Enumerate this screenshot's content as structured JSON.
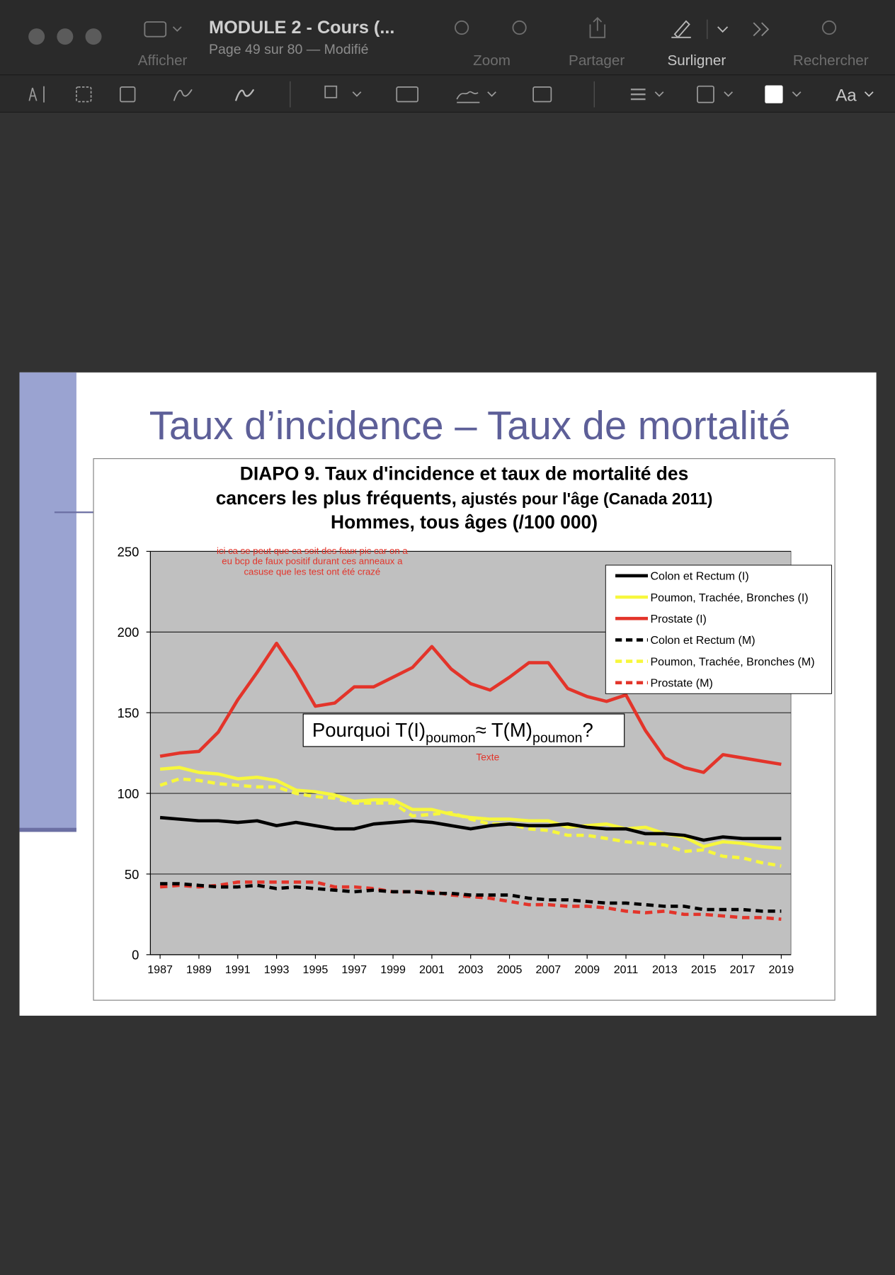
{
  "window": {
    "document_title": "MODULE 2 - Cours (...",
    "page_info": "Page 49 sur 80 — Modifié",
    "toolbar": [
      "Afficher",
      "Zoom",
      "Partager",
      "Surligner",
      "Rechercher"
    ],
    "font_button": "Aa"
  },
  "slide": {
    "title": "Taux d’incidence – Taux de mortalité"
  },
  "chart_data": {
    "type": "line",
    "title_lines": [
      [
        "DIAPO 9. Taux d'incidence et taux de mortalité des"
      ],
      [
        "cancers les plus fréquents,",
        " ajustés pour l'âge (Canada 2011)"
      ],
      [
        "Hommes, tous âges (/100 000)"
      ]
    ],
    "annotation_lines": [
      "ici ca se peut que ca soit des faux pic car on a",
      "eu bcp de faux positif durant ces anneaux a",
      "casuse que les test ont été crazé"
    ],
    "small_note": "Texte",
    "question": [
      "Pourquoi T(I)",
      "poumon",
      "≈ T(M)",
      "poumon",
      "?"
    ],
    "x": [
      1987,
      1988,
      1989,
      1990,
      1991,
      1992,
      1993,
      1994,
      1995,
      1996,
      1997,
      1998,
      1999,
      2000,
      2001,
      2002,
      2003,
      2004,
      2005,
      2006,
      2007,
      2008,
      2009,
      2010,
      2011,
      2012,
      2013,
      2014,
      2015,
      2016,
      2017,
      2018,
      2019
    ],
    "xlim": [
      1986.5,
      2019.5
    ],
    "xticks": [
      1987,
      1989,
      1991,
      1993,
      1995,
      1997,
      1999,
      2001,
      2003,
      2005,
      2007,
      2009,
      2011,
      2013,
      2015,
      2017,
      2019
    ],
    "ylim": [
      0,
      250
    ],
    "yticks": [
      0,
      50,
      100,
      150,
      200,
      250
    ],
    "grid": true,
    "legend": "top-right",
    "series": [
      {
        "name": "Colon et Rectum (I)",
        "color": "#000000",
        "dashed": false,
        "values": [
          85,
          84,
          83,
          83,
          82,
          83,
          80,
          82,
          80,
          78,
          78,
          81,
          82,
          83,
          82,
          80,
          78,
          80,
          81,
          80,
          80,
          81,
          79,
          78,
          78,
          75,
          75,
          74,
          71,
          73,
          72,
          72,
          72
        ]
      },
      {
        "name": "Poumon, Trachée, Bronches (I)",
        "color": "#f7f73c",
        "dashed": false,
        "values": [
          115,
          116,
          113,
          112,
          109,
          110,
          108,
          102,
          101,
          99,
          95,
          96,
          96,
          90,
          90,
          87,
          85,
          84,
          84,
          83,
          83,
          79,
          80,
          81,
          78,
          79,
          75,
          73,
          67,
          70,
          69,
          67,
          66
        ]
      },
      {
        "name": "Prostate (I)",
        "color": "#e3342a",
        "dashed": false,
        "values": [
          123,
          125,
          126,
          138,
          158,
          175,
          193,
          175,
          154,
          156,
          166,
          166,
          172,
          178,
          191,
          177,
          168,
          164,
          172,
          181,
          181,
          165,
          160,
          157,
          161,
          139,
          122,
          116,
          113,
          124,
          122,
          120,
          118
        ]
      },
      {
        "name": "Colon et Rectum (M)",
        "color": "#000000",
        "dashed": true,
        "values": [
          44,
          44,
          43,
          42,
          42,
          43,
          41,
          42,
          41,
          40,
          39,
          40,
          39,
          39,
          38,
          38,
          37,
          37,
          37,
          35,
          34,
          34,
          33,
          32,
          32,
          31,
          30,
          30,
          28,
          28,
          28,
          27,
          27
        ]
      },
      {
        "name": "Poumon, Trachée, Bronches (M)",
        "color": "#f7f73c",
        "dashed": true,
        "values": [
          105,
          109,
          108,
          106,
          105,
          104,
          104,
          100,
          98,
          97,
          94,
          94,
          94,
          86,
          87,
          88,
          84,
          81,
          81,
          78,
          77,
          74,
          74,
          72,
          70,
          69,
          68,
          64,
          65,
          61,
          60,
          57,
          55
        ]
      },
      {
        "name": "Prostate (M)",
        "color": "#e3342a",
        "dashed": true,
        "values": [
          42,
          43,
          42,
          43,
          45,
          45,
          45,
          45,
          45,
          42,
          42,
          41,
          39,
          39,
          39,
          37,
          36,
          35,
          33,
          31,
          31,
          30,
          30,
          29,
          27,
          26,
          27,
          25,
          25,
          24,
          23,
          23,
          22
        ]
      }
    ]
  }
}
